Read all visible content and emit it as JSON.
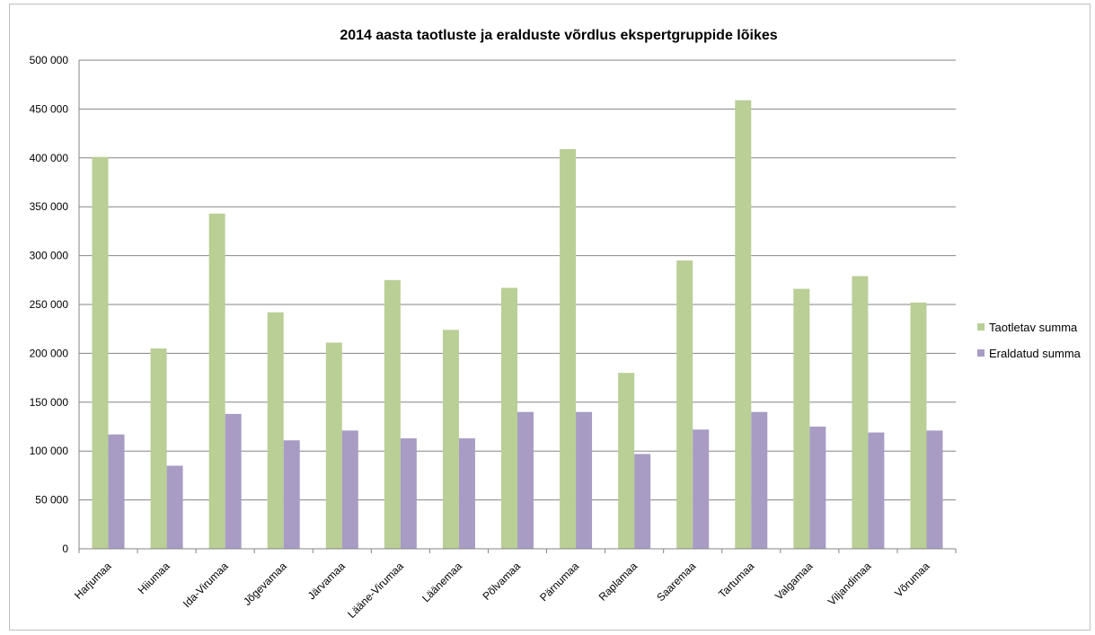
{
  "chart_data": {
    "type": "bar",
    "title": "2014 aasta taotluste ja eralduste võrdlus ekspertgruppide lõikes",
    "xlabel": "",
    "ylabel": "",
    "ylim": [
      0,
      500000
    ],
    "yticks": [
      0,
      50000,
      100000,
      150000,
      200000,
      250000,
      300000,
      350000,
      400000,
      450000,
      500000
    ],
    "ytick_labels": [
      "0",
      "50 000",
      "100 000",
      "150 000",
      "200 000",
      "250 000",
      "300 000",
      "350 000",
      "400 000",
      "450 000",
      "500 000"
    ],
    "grid": true,
    "legend_position": "right",
    "categories": [
      "Harjumaa",
      "Hiiumaa",
      "Ida-Virumaa",
      "Jõgevamaa",
      "Järvamaa",
      "Lääne-Virumaa",
      "Läänemaa",
      "Põlvamaa",
      "Pärnumaa",
      "Raplamaa",
      "Saaremaa",
      "Tartumaa",
      "Valgamaa",
      "Viljandimaa",
      "Võrumaa"
    ],
    "series": [
      {
        "name": "Taotletav summa",
        "color": "#b9cf96",
        "values": [
          401000,
          205000,
          343000,
          242000,
          211000,
          275000,
          224000,
          267000,
          409000,
          180000,
          295000,
          459000,
          266000,
          279000,
          252000
        ]
      },
      {
        "name": "Eraldatud summa",
        "color": "#a89cc4",
        "values": [
          117000,
          85000,
          138000,
          111000,
          121000,
          113000,
          113000,
          140000,
          140000,
          97000,
          122000,
          140000,
          125000,
          119000,
          121000
        ]
      }
    ]
  }
}
